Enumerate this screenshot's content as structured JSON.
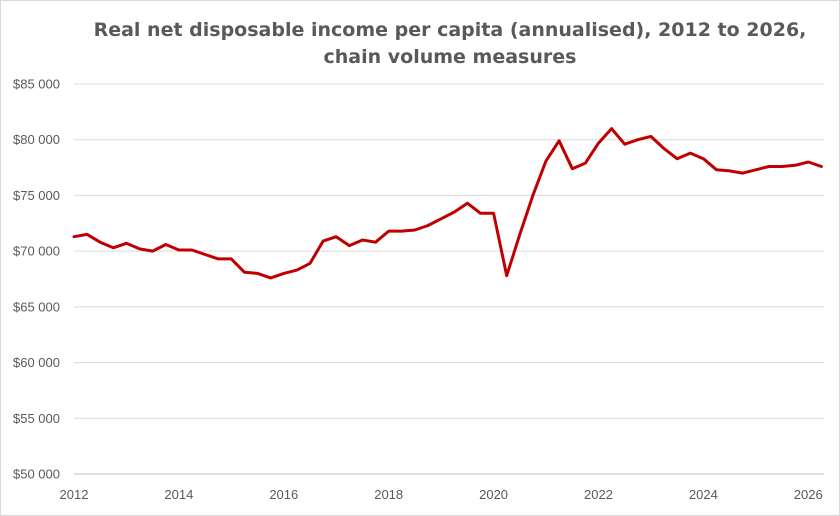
{
  "chart_data": {
    "type": "line",
    "title": [
      "Real net disposable income per capita (annualised), 2012 to 2026,",
      "chain volume measures"
    ],
    "xlabel": "",
    "ylabel": "",
    "xlim": [
      2012,
      2026.3
    ],
    "ylim": [
      50000,
      85000
    ],
    "x_ticks": [
      "2012",
      "2014",
      "2016",
      "2018",
      "2020",
      "2022",
      "2024",
      "2026"
    ],
    "y_ticks": [
      "$50 000",
      "$55 000",
      "$60 000",
      "$65 000",
      "$70 000",
      "$75 000",
      "$80 000",
      "$85 000"
    ],
    "grid": "horizontal",
    "legend": "none",
    "color": "#c00000",
    "series": [
      {
        "x": [
          2012.0,
          2012.25,
          2012.5,
          2012.75,
          2013.0,
          2013.25,
          2013.5,
          2013.75,
          2014.0,
          2014.25,
          2014.5,
          2014.75,
          2015.0,
          2015.25,
          2015.5,
          2015.75,
          2016.0,
          2016.25,
          2016.5,
          2016.75,
          2017.0,
          2017.25,
          2017.5,
          2017.75,
          2018.0,
          2018.25,
          2018.5,
          2018.75,
          2019.0,
          2019.25,
          2019.5,
          2019.75,
          2020.0,
          2020.25,
          2020.5,
          2020.75,
          2021.0,
          2021.25,
          2021.5,
          2021.75,
          2022.0,
          2022.25,
          2022.5,
          2022.75,
          2023.0,
          2023.25,
          2023.5,
          2023.75,
          2024.0,
          2024.25,
          2024.5,
          2024.75,
          2025.0,
          2025.25,
          2025.5,
          2025.75,
          2026.0,
          2026.25
        ],
        "values": [
          71300,
          71500,
          70800,
          70300,
          70700,
          70200,
          70000,
          70600,
          70100,
          70100,
          69700,
          69300,
          69300,
          68100,
          68000,
          67600,
          68000,
          68300,
          68900,
          70900,
          71300,
          70500,
          71000,
          70800,
          71800,
          71800,
          71900,
          72300,
          72900,
          73500,
          74300,
          73400,
          73400,
          67800,
          71500,
          75000,
          78100,
          79900,
          77400,
          77900,
          79700,
          81000,
          79600,
          80000,
          80300,
          79200,
          78300,
          78800,
          78300,
          77300,
          77200,
          77000,
          77300,
          77600,
          77600,
          77700,
          78000,
          77600
        ]
      }
    ]
  }
}
